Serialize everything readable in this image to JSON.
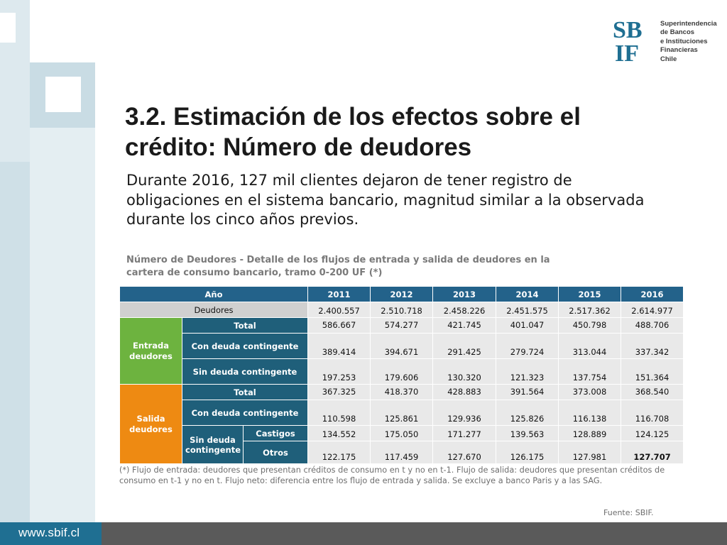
{
  "logo": {
    "letters": "SBIF",
    "lines": [
      "Superintendencia",
      "de Bancos",
      "e Instituciones",
      "Financieras",
      "Chile"
    ],
    "color": "#1f6f92"
  },
  "title": {
    "line1": "3.2. Estimación de los efectos sobre el",
    "line2": "crédito: Número de deudores"
  },
  "intro": {
    "line1": "Durante 2016, 127 mil clientes dejaron de tener registro de",
    "line2": "obligaciones en el sistema bancario, magnitud similar a la observada",
    "line3": "durante los cinco años previos."
  },
  "caption": {
    "line1": "Número de Deudores - Detalle de los flujos de entrada y salida de deudores en la",
    "line2": "cartera de consumo bancario, tramo 0-200 UF (*)"
  },
  "table": {
    "header": {
      "label": "Año",
      "years": [
        "2011",
        "2012",
        "2013",
        "2014",
        "2015",
        "2016"
      ]
    },
    "deudores": {
      "label": "Deudores",
      "values": [
        "2.400.557",
        "2.510.718",
        "2.458.226",
        "2.451.575",
        "2.517.362",
        "2.614.977"
      ]
    },
    "entrada": {
      "label": "Entrada deudores",
      "total": {
        "label": "Total",
        "values": [
          "586.667",
          "574.277",
          "421.745",
          "401.047",
          "450.798",
          "488.706"
        ]
      },
      "con": {
        "label": "Con deuda contingente",
        "values": [
          "389.414",
          "394.671",
          "291.425",
          "279.724",
          "313.044",
          "337.342"
        ]
      },
      "sin": {
        "label": "Sin deuda contingente",
        "values": [
          "197.253",
          "179.606",
          "130.320",
          "121.323",
          "137.754",
          "151.364"
        ]
      }
    },
    "salida": {
      "label": "Salida deudores",
      "total": {
        "label": "Total",
        "values": [
          "367.325",
          "418.370",
          "428.883",
          "391.564",
          "373.008",
          "368.540"
        ]
      },
      "con": {
        "label": "Con deuda contingente",
        "values": [
          "110.598",
          "125.861",
          "129.936",
          "125.826",
          "116.138",
          "116.708"
        ]
      },
      "sin_label": "Sin deuda contingente",
      "castigos": {
        "label": "Castigos",
        "values": [
          "134.552",
          "175.050",
          "171.277",
          "139.563",
          "128.889",
          "124.125"
        ]
      },
      "otros": {
        "label": "Otros",
        "values": [
          "122.175",
          "117.459",
          "127.670",
          "126.175",
          "127.981",
          "127.707"
        ]
      }
    },
    "colors": {
      "header": "#23628a",
      "entrada": "#6db33f",
      "salida": "#ee8a12",
      "sub": "#1f5f7a"
    }
  },
  "footnote": {
    "line1": "(*) Flujo de entrada: deudores que presentan créditos de consumo en t y no en t-1. Flujo de salida: deudores que presentan créditos de",
    "line2": "consumo en t-1 y no en t. Flujo neto: diferencia entre los flujo de entrada y salida. Se excluye a banco Paris y a las SAG."
  },
  "source": "Fuente: SBIF.",
  "footer": {
    "url": "www.sbif.cl"
  }
}
